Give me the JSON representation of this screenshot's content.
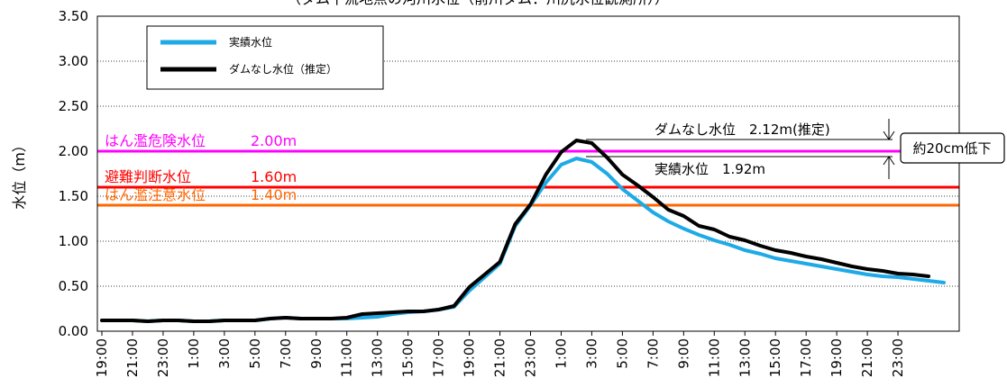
{
  "chart_data": {
    "type": "line",
    "title": "（ダム下流地点の河川水位（前川ダム：川尻水位観測所））",
    "ylabel": "水位（m）",
    "xlabel": "",
    "ylim": [
      0,
      3.5
    ],
    "yticks": [
      "0.00",
      "0.50",
      "1.00",
      "1.50",
      "2.00",
      "2.50",
      "3.00",
      "3.50"
    ],
    "grid": true,
    "legend_position": "top-left",
    "x_labels": [
      "19:00",
      "21:00",
      "23:00",
      "1:00",
      "3:00",
      "5:00",
      "7:00",
      "9:00",
      "11:00",
      "13:00",
      "15:00",
      "17:00",
      "19:00",
      "21:00",
      "23:00",
      "1:00",
      "3:00",
      "5:00",
      "7:00",
      "9:00",
      "11:00",
      "13:00",
      "15:00",
      "17:00",
      "19:00",
      "21:00",
      "23:00"
    ],
    "series": [
      {
        "name": "実績水位",
        "color": "#1EAAE6",
        "values": [
          0.12,
          0.12,
          0.12,
          0.11,
          0.12,
          0.12,
          0.11,
          0.11,
          0.12,
          0.12,
          0.12,
          0.14,
          0.15,
          0.14,
          0.14,
          0.14,
          0.14,
          0.15,
          0.16,
          0.19,
          0.21,
          0.22,
          0.24,
          0.27,
          0.45,
          0.6,
          0.75,
          1.17,
          1.4,
          1.65,
          1.85,
          1.92,
          1.88,
          1.75,
          1.58,
          1.45,
          1.32,
          1.22,
          1.14,
          1.07,
          1.01,
          0.96,
          0.9,
          0.86,
          0.81,
          0.78,
          0.75,
          0.72,
          0.69,
          0.66,
          0.63,
          0.61,
          0.6,
          0.58,
          0.56,
          0.54
        ]
      },
      {
        "name": "ダムなし水位（推定）",
        "color": "#000000",
        "values": [
          0.12,
          0.12,
          0.12,
          0.11,
          0.12,
          0.12,
          0.11,
          0.11,
          0.12,
          0.12,
          0.12,
          0.14,
          0.15,
          0.14,
          0.14,
          0.14,
          0.15,
          0.19,
          0.2,
          0.21,
          0.22,
          0.22,
          0.24,
          0.28,
          0.49,
          0.63,
          0.77,
          1.19,
          1.41,
          1.74,
          1.99,
          2.12,
          2.09,
          1.93,
          1.74,
          1.62,
          1.49,
          1.35,
          1.28,
          1.17,
          1.13,
          1.05,
          1.01,
          0.95,
          0.9,
          0.87,
          0.83,
          0.8,
          0.76,
          0.72,
          0.69,
          0.67,
          0.64,
          0.63,
          0.61
        ]
      }
    ],
    "reference_lines": [
      {
        "label": "はん濫危険水位",
        "value_label": "2.00m",
        "value": 2.0,
        "color": "#FF00FF"
      },
      {
        "label": "避難判断水位",
        "value_label": "1.60m",
        "value": 1.6,
        "color": "#FF0000"
      },
      {
        "label": "はん濫注意水位",
        "value_label": "1.40m",
        "value": 1.4,
        "color": "#FF6600"
      }
    ],
    "annotations": {
      "peak_damless": "ダムなし水位　2.12m(推定)",
      "peak_actual": "実績水位　1.92m",
      "reduction": "約20cm低下"
    }
  }
}
